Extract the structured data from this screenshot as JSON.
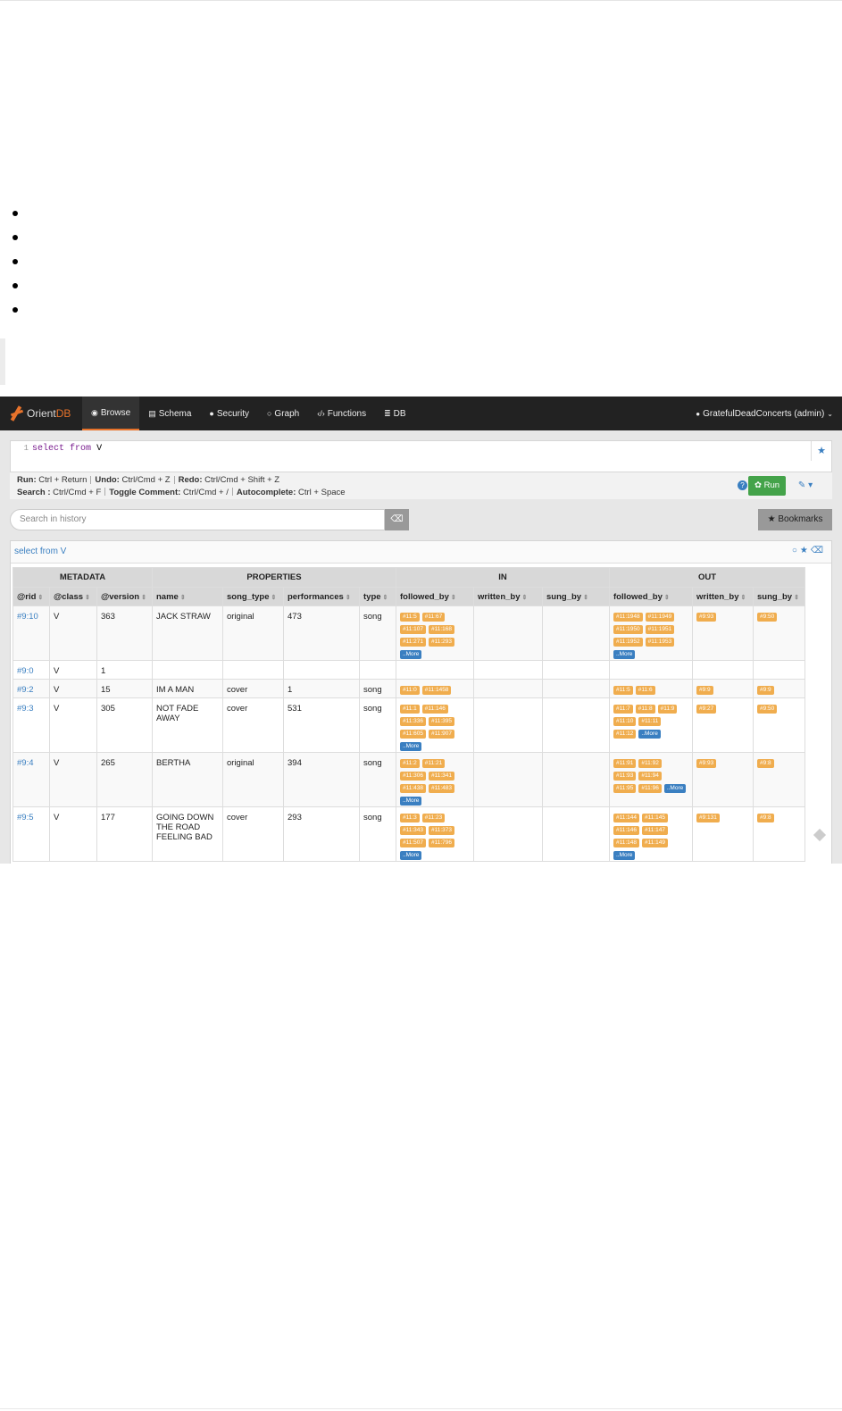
{
  "navbar": {
    "logo": {
      "prefix": "Orient",
      "suffix": "DB"
    },
    "items": [
      {
        "label": "Browse",
        "icon": "eye-icon",
        "glyph": "◉"
      },
      {
        "label": "Schema",
        "icon": "schema-icon",
        "glyph": "▤"
      },
      {
        "label": "Security",
        "icon": "user-icon",
        "glyph": "●"
      },
      {
        "label": "Graph",
        "icon": "circle-icon",
        "glyph": "○"
      },
      {
        "label": "Functions",
        "icon": "code-icon",
        "glyph": "‹/›"
      },
      {
        "label": "DB",
        "icon": "database-icon",
        "glyph": "≣"
      }
    ],
    "user": "GratefulDeadConcerts (admin)"
  },
  "editor": {
    "line_number": "1",
    "keyword_select": "select",
    "keyword_from": "from",
    "target": "V"
  },
  "hints": {
    "run_key": "Run:",
    "run_val": "Ctrl + Return",
    "undo_key": "Undo:",
    "undo_val": "Ctrl/Cmd + Z",
    "redo_key": "Redo:",
    "redo_val": "Ctrl/Cmd + Shift + Z",
    "search_key": "Search :",
    "search_val": "Ctrl/Cmd + F",
    "toggle_key": "Toggle Comment:",
    "toggle_val": "Ctrl/Cmd + /",
    "auto_key": "Autocomplete:",
    "auto_val": "Ctrl + Space"
  },
  "toolbar": {
    "run_label": "Run",
    "bookmarks_label": "Bookmarks",
    "history_placeholder": "Search in history"
  },
  "panel": {
    "title": "select from V"
  },
  "table": {
    "groups": [
      "METADATA",
      "PROPERTIES",
      "IN",
      "OUT"
    ],
    "columns": [
      "@rid",
      "@class",
      "@version",
      "name",
      "song_type",
      "performances",
      "type",
      "followed_by",
      "written_by",
      "sung_by",
      "followed_by",
      "written_by",
      "sung_by"
    ],
    "more_label": "..More",
    "rows": [
      {
        "rid": "#9:10",
        "cls": "V",
        "version": "363",
        "name": "JACK STRAW",
        "song_type": "original",
        "performances": "473",
        "type": "song",
        "in_followed": [
          "#11:5",
          "#11:67",
          "#11:107",
          "#11:168",
          "#11:271",
          "#11:293"
        ],
        "in_more": true,
        "out_followed": [
          "#11:1948",
          "#11:1949",
          "#11:1950",
          "#11:1951",
          "#11:1952",
          "#11:1953"
        ],
        "out_more": true,
        "out_written": [
          "#9:93"
        ],
        "out_sung": [
          "#9:50"
        ]
      },
      {
        "rid": "#9:0",
        "cls": "V",
        "version": "1",
        "name": "",
        "song_type": "",
        "performances": "",
        "type": "",
        "in_followed": [],
        "in_more": false,
        "out_followed": [],
        "out_more": false,
        "out_written": [],
        "out_sung": []
      },
      {
        "rid": "#9:2",
        "cls": "V",
        "version": "15",
        "name": "IM A MAN",
        "song_type": "cover",
        "performances": "1",
        "type": "song",
        "in_followed": [
          "#11:0",
          "#11:1458"
        ],
        "in_more": false,
        "out_followed": [
          "#11:5",
          "#11:6"
        ],
        "out_more": false,
        "out_written": [
          "#9:9"
        ],
        "out_sung": [
          "#9:9"
        ]
      },
      {
        "rid": "#9:3",
        "cls": "V",
        "version": "305",
        "name": "NOT FADE AWAY",
        "song_type": "cover",
        "performances": "531",
        "type": "song",
        "in_followed": [
          "#11:1",
          "#11:146",
          "#11:336",
          "#11:395",
          "#11:605",
          "#11:907"
        ],
        "in_more": true,
        "out_followed": [
          "#11:7",
          "#11:8",
          "#11:9",
          "#11:10",
          "#11:11",
          "#11:12"
        ],
        "out_more": true,
        "out_written": [
          "#9:27"
        ],
        "out_sung": [
          "#9:50"
        ]
      },
      {
        "rid": "#9:4",
        "cls": "V",
        "version": "265",
        "name": "BERTHA",
        "song_type": "original",
        "performances": "394",
        "type": "song",
        "in_followed": [
          "#11:2",
          "#11:21",
          "#11:306",
          "#11:341",
          "#11:438",
          "#11:483"
        ],
        "in_more": true,
        "out_followed": [
          "#11:91",
          "#11:92",
          "#11:93",
          "#11:94",
          "#11:95",
          "#11:96"
        ],
        "out_more": true,
        "out_written": [
          "#9:93"
        ],
        "out_sung": [
          "#9:8"
        ]
      },
      {
        "rid": "#9:5",
        "cls": "V",
        "version": "177",
        "name": "GOING DOWN THE ROAD FEELING BAD",
        "song_type": "cover",
        "performances": "293",
        "type": "song",
        "in_followed": [
          "#11:3",
          "#11:23",
          "#11:343",
          "#11:373",
          "#11:507",
          "#11:796"
        ],
        "in_more": true,
        "out_followed": [
          "#11:144",
          "#11:145",
          "#11:146",
          "#11:147",
          "#11:148",
          "#11:149"
        ],
        "out_more": true,
        "out_written": [
          "#9:131"
        ],
        "out_sung": [
          "#9:8"
        ]
      }
    ]
  }
}
